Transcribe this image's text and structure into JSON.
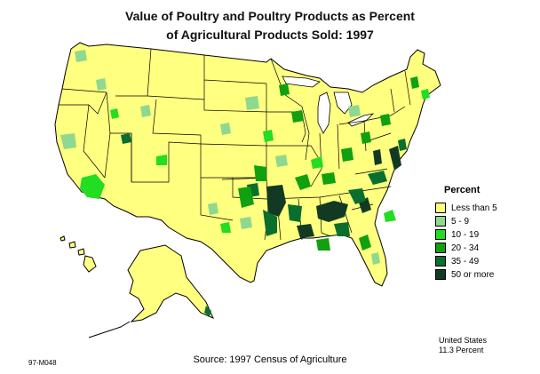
{
  "title_line1": "Value of Poultry and Poultry Products as Percent",
  "title_line2": "of Agricultural Products Sold:  1997",
  "legend": {
    "title": "Percent",
    "items": [
      {
        "label": "Less than 5",
        "color": "#ffff80"
      },
      {
        "label": "5 - 9",
        "color": "#8fd88f"
      },
      {
        "label": "10 - 19",
        "color": "#22dd22"
      },
      {
        "label": "20 - 34",
        "color": "#10a010"
      },
      {
        "label": "35 - 49",
        "color": "#0a6e2e"
      },
      {
        "label": "50 or more",
        "color": "#123a22"
      }
    ]
  },
  "source": "Source:  1997 Census of Agriculture",
  "code": "97-M048",
  "us_total_line1": "United States",
  "us_total_line2": "11.3 Percent",
  "colors": {
    "land": "#ffff80",
    "border": "#000000"
  }
}
